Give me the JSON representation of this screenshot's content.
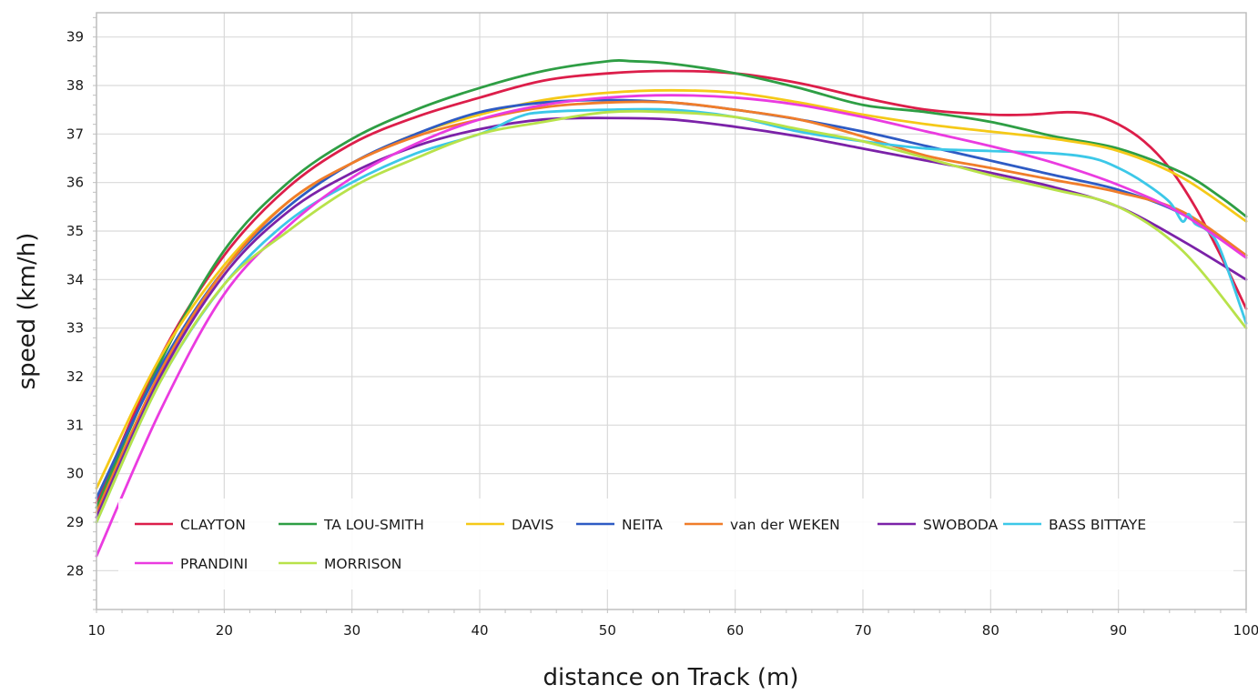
{
  "chart_data": {
    "type": "line",
    "title": "",
    "xlabel": "distance on Track (m)",
    "ylabel": "speed (km/h)",
    "xlim": [
      10,
      100
    ],
    "ylim": [
      27.2,
      39.5
    ],
    "xticks": [
      10,
      20,
      30,
      40,
      50,
      60,
      70,
      80,
      90,
      100
    ],
    "yticks": [
      28,
      29,
      30,
      31,
      32,
      33,
      34,
      35,
      36,
      37,
      38,
      39
    ],
    "grid": true,
    "legend_position": "inside-bottom",
    "series": [
      {
        "name": "CLAYTON",
        "color": "#dc1e4a",
        "x": [
          10,
          15,
          20,
          25,
          30,
          35,
          40,
          45,
          50,
          55,
          60,
          65,
          70,
          75,
          80,
          83,
          86,
          88,
          90,
          92,
          94,
          96,
          98,
          100
        ],
        "y": [
          29.4,
          32.4,
          34.5,
          35.9,
          36.8,
          37.35,
          37.75,
          38.1,
          38.25,
          38.3,
          38.25,
          38.05,
          37.75,
          37.5,
          37.4,
          37.4,
          37.45,
          37.4,
          37.2,
          36.85,
          36.3,
          35.5,
          34.5,
          33.4
        ]
      },
      {
        "name": "TA LOU-SMITH",
        "color": "#2e9e44",
        "x": [
          10,
          15,
          20,
          25,
          30,
          35,
          40,
          45,
          50,
          52,
          55,
          60,
          65,
          70,
          75,
          80,
          85,
          90,
          95,
          98,
          100
        ],
        "y": [
          29.3,
          32.3,
          34.6,
          36.0,
          36.9,
          37.5,
          37.95,
          38.3,
          38.5,
          38.5,
          38.45,
          38.25,
          37.95,
          37.6,
          37.45,
          37.25,
          36.95,
          36.7,
          36.2,
          35.7,
          35.3
        ]
      },
      {
        "name": "DAVIS",
        "color": "#f5c918",
        "x": [
          10,
          15,
          20,
          25,
          30,
          35,
          40,
          45,
          50,
          55,
          60,
          65,
          70,
          75,
          80,
          85,
          90,
          95,
          100
        ],
        "y": [
          29.7,
          32.4,
          34.3,
          35.6,
          36.4,
          37.0,
          37.4,
          37.7,
          37.85,
          37.9,
          37.85,
          37.65,
          37.4,
          37.2,
          37.05,
          36.9,
          36.65,
          36.1,
          35.2
        ]
      },
      {
        "name": "NEITA",
        "color": "#2e5bc4",
        "x": [
          10,
          15,
          20,
          25,
          30,
          35,
          40,
          45,
          50,
          55,
          60,
          65,
          70,
          75,
          80,
          85,
          90,
          95,
          100
        ],
        "y": [
          29.5,
          32.2,
          34.2,
          35.5,
          36.4,
          37.0,
          37.45,
          37.65,
          37.7,
          37.65,
          37.5,
          37.3,
          37.05,
          36.75,
          36.45,
          36.15,
          35.85,
          35.35,
          34.5
        ]
      },
      {
        "name": "van der WEKEN",
        "color": "#f07d2a",
        "x": [
          10,
          15,
          20,
          25,
          30,
          35,
          40,
          45,
          50,
          55,
          60,
          65,
          70,
          75,
          80,
          85,
          90,
          95,
          100
        ],
        "y": [
          29.2,
          32.1,
          34.2,
          35.6,
          36.4,
          36.95,
          37.3,
          37.55,
          37.65,
          37.65,
          37.5,
          37.3,
          36.95,
          36.55,
          36.3,
          36.05,
          35.8,
          35.4,
          34.5
        ]
      },
      {
        "name": "SWOBODA",
        "color": "#7b22a8",
        "x": [
          10,
          15,
          20,
          25,
          30,
          35,
          40,
          45,
          50,
          55,
          60,
          65,
          70,
          75,
          80,
          85,
          90,
          95,
          100
        ],
        "y": [
          29.1,
          32.0,
          34.1,
          35.4,
          36.2,
          36.75,
          37.1,
          37.3,
          37.33,
          37.3,
          37.15,
          36.95,
          36.7,
          36.45,
          36.2,
          35.9,
          35.5,
          34.8,
          34.0
        ]
      },
      {
        "name": "BASS BITTAYE",
        "color": "#3cc8e8",
        "x": [
          10,
          15,
          20,
          25,
          30,
          35,
          40,
          43,
          45,
          50,
          55,
          60,
          65,
          70,
          75,
          80,
          85,
          88,
          90,
          92,
          94,
          95,
          95.5,
          96,
          97,
          98,
          100
        ],
        "y": [
          29.0,
          31.9,
          33.9,
          35.2,
          36.0,
          36.6,
          37.0,
          37.35,
          37.45,
          37.5,
          37.5,
          37.35,
          37.05,
          36.85,
          36.7,
          36.65,
          36.6,
          36.5,
          36.3,
          36.0,
          35.6,
          35.2,
          35.35,
          35.15,
          35.0,
          34.6,
          33.1
        ]
      },
      {
        "name": "PRANDINI",
        "color": "#ea3be0",
        "x": [
          10,
          15,
          20,
          25,
          30,
          35,
          40,
          45,
          50,
          55,
          60,
          65,
          70,
          75,
          80,
          85,
          90,
          95,
          100
        ],
        "y": [
          28.3,
          31.3,
          33.7,
          35.1,
          36.1,
          36.8,
          37.3,
          37.6,
          37.75,
          37.8,
          37.75,
          37.6,
          37.35,
          37.05,
          36.75,
          36.4,
          35.95,
          35.35,
          34.45
        ]
      },
      {
        "name": "MORRISON",
        "color": "#b8e24a",
        "x": [
          10,
          15,
          20,
          25,
          30,
          35,
          40,
          45,
          50,
          55,
          60,
          65,
          70,
          75,
          80,
          85,
          90,
          95,
          100
        ],
        "y": [
          29.0,
          31.9,
          33.9,
          35.0,
          35.9,
          36.5,
          37.0,
          37.25,
          37.45,
          37.45,
          37.35,
          37.1,
          36.85,
          36.5,
          36.15,
          35.85,
          35.5,
          34.6,
          33.0
        ]
      }
    ]
  }
}
